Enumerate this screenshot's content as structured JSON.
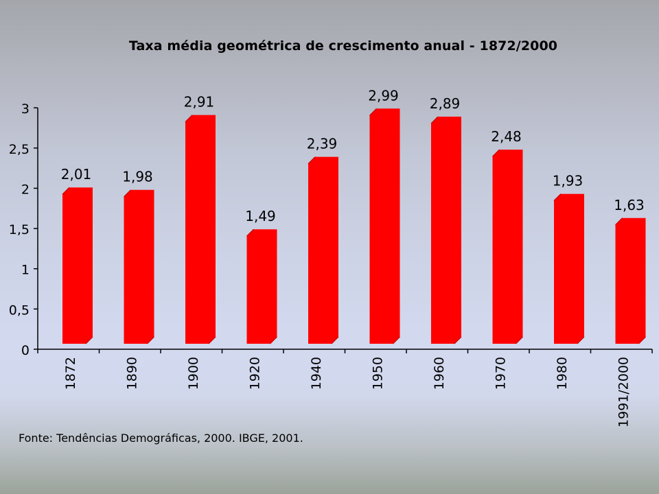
{
  "chart_data": {
    "type": "bar",
    "title": "Taxa média geométrica de crescimento anual - 1872/2000",
    "xlabel": "",
    "ylabel": "",
    "categories": [
      "1872",
      "1890",
      "1900",
      "1920",
      "1940",
      "1950",
      "1960",
      "1970",
      "1980",
      "1991/2000"
    ],
    "values": [
      2.01,
      1.98,
      2.91,
      1.49,
      2.39,
      2.99,
      2.89,
      2.48,
      1.93,
      1.63
    ],
    "data_labels": [
      "2,01",
      "1,98",
      "2,91",
      "1,49",
      "2,39",
      "2,99",
      "2,89",
      "2,48",
      "1,93",
      "1,63"
    ],
    "ylim": [
      0,
      3
    ],
    "yticks": [
      0,
      0.5,
      1,
      1.5,
      2,
      2.5,
      3
    ],
    "ytick_labels": [
      "0",
      "0,5",
      "1",
      "1,5",
      "2",
      "2,5",
      "3"
    ],
    "grid": false,
    "legend": "none",
    "bar_color": "#ff0000",
    "source": "Fonte: Tendências Demográficas, 2000. IBGE, 2001."
  }
}
